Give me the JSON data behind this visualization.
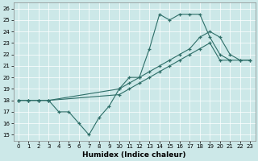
{
  "xlabel": "Humidex (Indice chaleur)",
  "bg_color": "#cce8e8",
  "line_color": "#2d6e68",
  "grid_color": "#b0d8d8",
  "xlim": [
    -0.5,
    23.5
  ],
  "ylim": [
    14.5,
    26.5
  ],
  "xticks": [
    0,
    1,
    2,
    3,
    4,
    5,
    6,
    7,
    8,
    9,
    10,
    11,
    12,
    13,
    14,
    15,
    16,
    17,
    18,
    19,
    20,
    21,
    22,
    23
  ],
  "yticks": [
    15,
    16,
    17,
    18,
    19,
    20,
    21,
    22,
    23,
    24,
    25,
    26
  ],
  "s1_x": [
    0,
    1,
    2,
    3,
    4,
    5,
    6,
    7,
    8,
    9,
    10,
    11,
    12,
    13,
    14,
    15,
    16,
    17,
    18,
    19,
    20,
    21
  ],
  "s1_y": [
    18,
    18,
    18,
    18,
    17,
    17,
    16,
    15,
    16.5,
    17.5,
    19,
    20,
    20,
    22.5,
    25.5,
    25,
    25.5,
    25.5,
    25.5,
    23.5,
    22,
    21.5
  ],
  "s2_x": [
    0,
    1,
    2,
    3,
    10,
    11,
    12,
    13,
    14,
    15,
    16,
    17,
    18,
    19,
    20,
    21,
    22,
    23
  ],
  "s2_y": [
    18,
    18,
    18,
    18,
    19.0,
    19.5,
    20.0,
    20.5,
    21.0,
    21.5,
    22.0,
    22.5,
    23.5,
    24.0,
    23.5,
    22.0,
    21.5,
    21.5
  ],
  "s3_x": [
    0,
    1,
    2,
    3,
    10,
    11,
    12,
    13,
    14,
    15,
    16,
    17,
    18,
    19,
    20,
    21,
    22,
    23
  ],
  "s3_y": [
    18,
    18,
    18,
    18,
    18.5,
    19.0,
    19.5,
    20.0,
    20.5,
    21.0,
    21.5,
    22.0,
    22.5,
    23.0,
    21.5,
    21.5,
    21.5,
    21.5
  ]
}
